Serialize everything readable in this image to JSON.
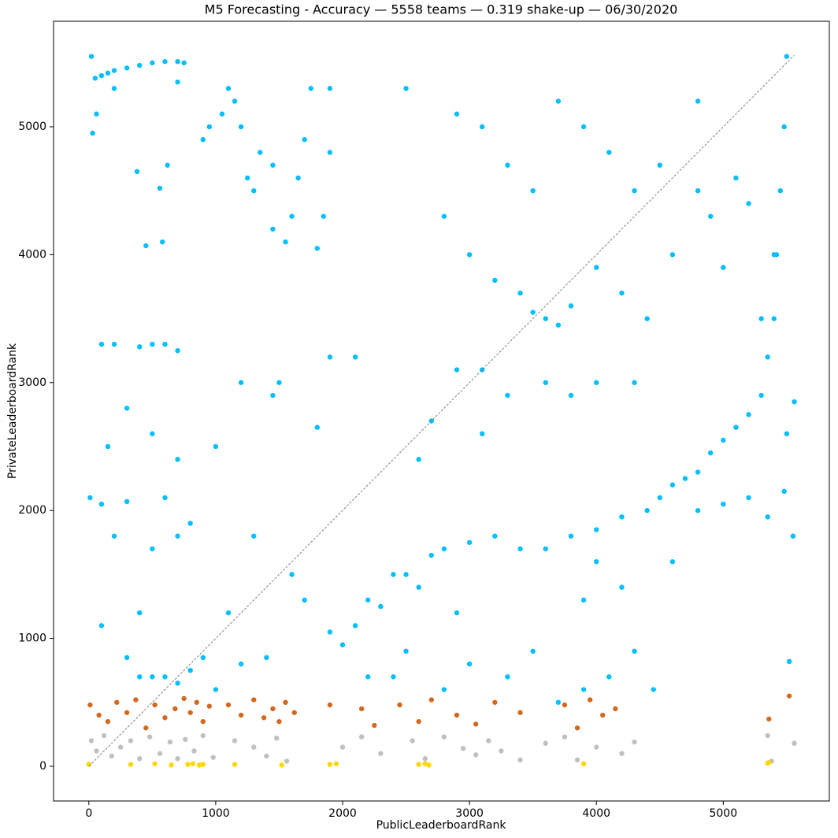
{
  "chart_data": {
    "type": "scatter",
    "title": "M5 Forecasting - Accuracy — 5558 teams — 0.319 shake-up — 06/30/2020",
    "x_label": "PublicLeaderboardRank",
    "y_label": "PrivateLeaderboardRank",
    "xlim": [
      -278,
      5836
    ],
    "ylim": [
      -271,
      5825
    ],
    "xticks": [
      0,
      1000,
      2000,
      3000,
      4000,
      5000
    ],
    "yticks": [
      0,
      1000,
      2000,
      3000,
      4000,
      5000
    ],
    "grid": false,
    "diagonal": {
      "x": [
        1,
        5558
      ],
      "y": [
        1,
        5558
      ],
      "color": "#808080"
    },
    "series": [
      {
        "color": "#00bfff",
        "x": [
          50,
          100,
          150,
          200,
          300,
          400,
          500,
          600,
          700,
          750,
          20,
          30,
          60,
          200,
          380,
          560,
          620,
          580,
          450,
          700,
          900,
          950,
          1050,
          1100,
          1150,
          1200,
          1250,
          1300,
          1350,
          1450,
          1550,
          1600,
          1650,
          1700,
          1750,
          1800,
          1850,
          1900,
          1900,
          1450,
          2500,
          2900,
          3100,
          3300,
          3500,
          3700,
          3900,
          4100,
          4300,
          4500,
          2800,
          3000,
          3200,
          3400,
          3500,
          3600,
          3700,
          3800,
          4000,
          4200,
          4400,
          4600,
          4800,
          4800,
          4900,
          5000,
          5100,
          5200,
          5300,
          5400,
          5500,
          5480,
          5450,
          5420,
          5400,
          5350,
          5300,
          5200,
          5100,
          5000,
          4900,
          4800,
          4700,
          4600,
          4500,
          4400,
          4200,
          4000,
          3800,
          3600,
          3400,
          3200,
          3000,
          2800,
          2700,
          2500,
          2400,
          2300,
          2200,
          2100,
          2000,
          1900,
          2600,
          2900,
          2500,
          2200,
          3000,
          2800,
          3500,
          3300,
          100,
          200,
          400,
          500,
          600,
          700,
          300,
          150,
          500,
          700,
          10,
          100,
          300,
          600,
          800,
          200,
          500,
          700,
          400,
          100,
          300,
          400,
          500,
          600,
          700,
          800,
          900,
          1000,
          1200,
          1400,
          1500,
          1450,
          1900,
          2100,
          1800,
          1200,
          1000,
          1300,
          1600,
          1100,
          2700,
          2900,
          3100,
          3300,
          3600,
          3800,
          4000,
          4300,
          2600,
          3100,
          4000,
          3900,
          4200,
          4100,
          3900,
          4300,
          4600,
          4800,
          5000,
          5200,
          5520,
          5550,
          5500,
          5350,
          5480,
          5560,
          4450,
          3700,
          2400,
          1700
        ],
        "y": [
          5380,
          5400,
          5420,
          5440,
          5460,
          5480,
          5500,
          5510,
          5510,
          5500,
          5550,
          4950,
          5100,
          5300,
          4650,
          4520,
          4700,
          4100,
          4070,
          5350,
          4900,
          5000,
          5100,
          5300,
          5200,
          5000,
          4600,
          4500,
          4800,
          4700,
          4100,
          4300,
          4600,
          4900,
          5300,
          4050,
          4300,
          4800,
          5300,
          4200,
          5300,
          5100,
          5000,
          4700,
          4500,
          5200,
          5000,
          4800,
          4500,
          4700,
          4300,
          4000,
          3800,
          3700,
          3550,
          3500,
          3450,
          3600,
          3900,
          3700,
          3500,
          4000,
          4500,
          5200,
          4300,
          3900,
          4600,
          4400,
          3500,
          4000,
          5550,
          5000,
          4500,
          4000,
          3500,
          3200,
          2900,
          2750,
          2650,
          2550,
          2450,
          2300,
          2250,
          2200,
          2100,
          2000,
          1950,
          1850,
          1800,
          1700,
          1700,
          1800,
          1750,
          1700,
          1650,
          1500,
          1500,
          1250,
          1300,
          1100,
          950,
          1050,
          1400,
          1200,
          900,
          700,
          800,
          600,
          900,
          700,
          3300,
          3300,
          3280,
          3300,
          3300,
          3250,
          2800,
          2500,
          2600,
          2400,
          2100,
          2050,
          2070,
          2100,
          1900,
          1800,
          1700,
          1800,
          1200,
          1100,
          850,
          700,
          700,
          700,
          650,
          750,
          850,
          600,
          800,
          850,
          3000,
          2900,
          3200,
          3200,
          2650,
          3000,
          2500,
          1800,
          1500,
          1200,
          2700,
          3100,
          3100,
          2900,
          3000,
          2900,
          3000,
          3000,
          2400,
          2600,
          1600,
          1300,
          1400,
          700,
          600,
          900,
          1600,
          2000,
          2050,
          2100,
          820,
          1800,
          2600,
          1950,
          2150,
          2850,
          600,
          500,
          700,
          1300
        ]
      },
      {
        "color": "#d2691e",
        "x": [
          10,
          80,
          150,
          220,
          300,
          370,
          450,
          520,
          600,
          680,
          750,
          800,
          850,
          900,
          950,
          1100,
          1200,
          1300,
          1380,
          1450,
          1500,
          1550,
          1620,
          1900,
          2150,
          2250,
          2450,
          2600,
          2700,
          2900,
          3050,
          3200,
          3400,
          3750,
          3850,
          3950,
          4050,
          4150,
          5360,
          5520
        ],
        "y": [
          480,
          400,
          350,
          500,
          420,
          520,
          300,
          480,
          380,
          450,
          530,
          420,
          500,
          350,
          470,
          480,
          400,
          520,
          380,
          450,
          350,
          500,
          420,
          480,
          450,
          320,
          480,
          350,
          520,
          400,
          330,
          500,
          420,
          480,
          300,
          520,
          400,
          450,
          370,
          550
        ]
      },
      {
        "color": "#c0c0c0",
        "x": [
          20,
          60,
          120,
          180,
          250,
          330,
          400,
          480,
          560,
          640,
          700,
          760,
          830,
          900,
          980,
          1150,
          1300,
          1400,
          1480,
          1560,
          2000,
          2150,
          2300,
          2550,
          2650,
          2800,
          2950,
          3050,
          3150,
          3250,
          3400,
          3600,
          3750,
          3850,
          4000,
          4200,
          4300,
          5350,
          5380,
          5560
        ],
        "y": [
          200,
          120,
          240,
          80,
          150,
          200,
          60,
          230,
          100,
          190,
          60,
          210,
          120,
          240,
          70,
          200,
          150,
          80,
          220,
          40,
          150,
          230,
          100,
          200,
          60,
          230,
          140,
          90,
          200,
          120,
          50,
          180,
          230,
          50,
          150,
          100,
          190,
          240,
          40,
          180
        ]
      },
      {
        "color": "#ffd700",
        "x": [
          0,
          330,
          520,
          650,
          780,
          820,
          870,
          900,
          1150,
          1520,
          1900,
          1950,
          2600,
          2650,
          2680,
          3900,
          5350,
          5360
        ],
        "y": [
          15,
          15,
          20,
          10,
          15,
          20,
          10,
          15,
          15,
          10,
          15,
          20,
          15,
          20,
          10,
          20,
          25,
          30
        ]
      }
    ]
  }
}
